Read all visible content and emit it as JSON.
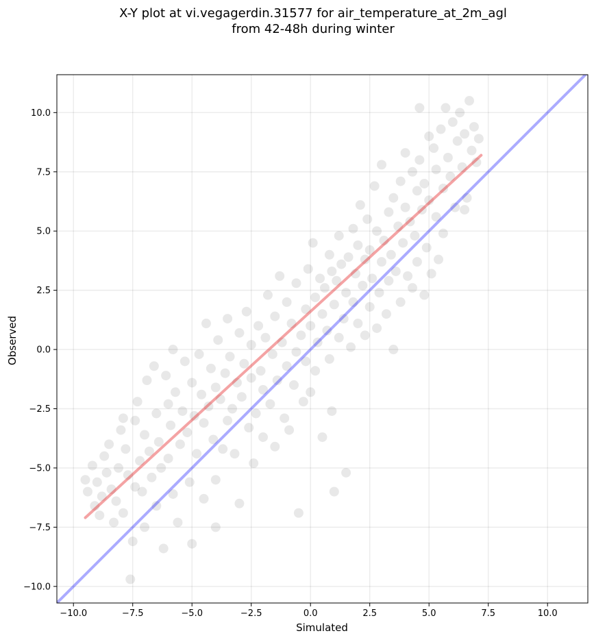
{
  "title_line1": "X-Y plot at vi.vegagerdin.31577 for air_temperature_at_2m_agl",
  "title_line2": "from 42-48h during winter",
  "chart_data": {
    "type": "scatter",
    "title": "X-Y plot at vi.vegagerdin.31577 for air_temperature_at_2m_agl from 42-48h during winter",
    "xlabel": "Simulated",
    "ylabel": "Observed",
    "xlim": [
      -10.7,
      11.7
    ],
    "ylim": [
      -10.7,
      11.6
    ],
    "xticks": [
      -10.0,
      -7.5,
      -5.0,
      -2.5,
      0.0,
      2.5,
      5.0,
      7.5,
      10.0
    ],
    "yticks": [
      -10.0,
      -7.5,
      -5.0,
      -2.5,
      0.0,
      2.5,
      5.0,
      7.5,
      10.0
    ],
    "xtick_labels": [
      "−10.0",
      "−7.5",
      "−5.0",
      "−2.5",
      "0.0",
      "2.5",
      "5.0",
      "7.5",
      "10.0"
    ],
    "ytick_labels": [
      "−10.0",
      "−7.5",
      "−5.0",
      "−2.5",
      "0.0",
      "2.5",
      "5.0",
      "7.5",
      "10.0"
    ],
    "grid": true,
    "point_color": "#000000",
    "point_alpha": 0.09,
    "lines": [
      {
        "type": "identity",
        "color": "#0000ff",
        "alpha": 0.33,
        "x": [
          -10.7,
          11.7
        ],
        "y": [
          -10.7,
          11.7
        ]
      },
      {
        "type": "fit",
        "color": "#e31a1c",
        "alpha": 0.4,
        "x": [
          -9.5,
          7.2
        ],
        "y": [
          -7.1,
          8.2
        ]
      }
    ],
    "points": [
      [
        -9.5,
        -5.5
      ],
      [
        -9.4,
        -6.0
      ],
      [
        -9.2,
        -4.9
      ],
      [
        -9.1,
        -6.6
      ],
      [
        -9.0,
        -5.6
      ],
      [
        -8.9,
        -7.0
      ],
      [
        -8.8,
        -6.2
      ],
      [
        -8.7,
        -4.5
      ],
      [
        -8.6,
        -5.2
      ],
      [
        -8.5,
        -4.0
      ],
      [
        -8.4,
        -5.9
      ],
      [
        -8.3,
        -7.3
      ],
      [
        -8.2,
        -6.4
      ],
      [
        -8.1,
        -5.0
      ],
      [
        -8.0,
        -3.4
      ],
      [
        -7.9,
        -2.9
      ],
      [
        -7.9,
        -6.9
      ],
      [
        -7.8,
        -4.2
      ],
      [
        -7.7,
        -5.3
      ],
      [
        -7.6,
        -9.7
      ],
      [
        -7.5,
        -8.1
      ],
      [
        -7.4,
        -3.0
      ],
      [
        -7.4,
        -5.8
      ],
      [
        -7.3,
        -2.2
      ],
      [
        -7.2,
        -4.7
      ],
      [
        -7.1,
        -6.0
      ],
      [
        -7.0,
        -3.6
      ],
      [
        -7.0,
        -7.5
      ],
      [
        -6.9,
        -1.3
      ],
      [
        -6.8,
        -4.3
      ],
      [
        -6.7,
        -5.4
      ],
      [
        -6.6,
        -0.7
      ],
      [
        -6.5,
        -2.7
      ],
      [
        -6.5,
        -6.6
      ],
      [
        -6.4,
        -3.9
      ],
      [
        -6.3,
        -5.0
      ],
      [
        -6.2,
        -8.4
      ],
      [
        -6.1,
        -1.1
      ],
      [
        -6.0,
        -2.3
      ],
      [
        -6.0,
        -4.6
      ],
      [
        -5.9,
        -3.2
      ],
      [
        -5.8,
        -6.1
      ],
      [
        -5.8,
        0.0
      ],
      [
        -5.7,
        -1.8
      ],
      [
        -5.6,
        -7.3
      ],
      [
        -5.5,
        -4.0
      ],
      [
        -5.4,
        -2.6
      ],
      [
        -5.3,
        -0.5
      ],
      [
        -5.2,
        -3.5
      ],
      [
        -5.1,
        -5.6
      ],
      [
        -5.0,
        -1.4
      ],
      [
        -5.0,
        -8.2
      ],
      [
        -4.9,
        -2.8
      ],
      [
        -4.8,
        -4.4
      ],
      [
        -4.7,
        -0.2
      ],
      [
        -4.6,
        -1.9
      ],
      [
        -4.5,
        -3.1
      ],
      [
        -4.5,
        -6.3
      ],
      [
        -4.4,
        1.1
      ],
      [
        -4.3,
        -2.4
      ],
      [
        -4.2,
        -0.8
      ],
      [
        -4.1,
        -3.8
      ],
      [
        -4.0,
        -5.5
      ],
      [
        -4.0,
        -1.6
      ],
      [
        -3.9,
        0.4
      ],
      [
        -3.8,
        -2.1
      ],
      [
        -3.7,
        -4.2
      ],
      [
        -3.6,
        -1.0
      ],
      [
        -3.5,
        -3.0
      ],
      [
        -3.5,
        1.3
      ],
      [
        -3.4,
        -0.3
      ],
      [
        -3.3,
        -2.5
      ],
      [
        -3.2,
        -4.4
      ],
      [
        -3.1,
        -1.4
      ],
      [
        -3.0,
        0.7
      ],
      [
        -3.0,
        -6.5
      ],
      [
        -2.9,
        -2.0
      ],
      [
        -2.8,
        -0.6
      ],
      [
        -2.7,
        1.6
      ],
      [
        -2.6,
        -3.3
      ],
      [
        -2.5,
        -1.2
      ],
      [
        -2.5,
        0.2
      ],
      [
        -2.4,
        -4.8
      ],
      [
        -2.3,
        -2.7
      ],
      [
        -2.2,
        1.0
      ],
      [
        -2.1,
        -0.9
      ],
      [
        -2.0,
        -3.7
      ],
      [
        -2.0,
        -1.7
      ],
      [
        -1.9,
        0.5
      ],
      [
        -1.8,
        2.3
      ],
      [
        -1.7,
        -2.3
      ],
      [
        -1.6,
        -0.2
      ],
      [
        -1.5,
        -4.1
      ],
      [
        -1.5,
        1.4
      ],
      [
        -1.4,
        -1.3
      ],
      [
        -1.3,
        3.1
      ],
      [
        -1.2,
        0.3
      ],
      [
        -1.1,
        -2.9
      ],
      [
        -1.0,
        -0.7
      ],
      [
        -1.0,
        2.0
      ],
      [
        -0.9,
        -3.4
      ],
      [
        -0.8,
        1.1
      ],
      [
        -0.7,
        -1.5
      ],
      [
        -0.6,
        -0.1
      ],
      [
        -0.6,
        2.8
      ],
      [
        -0.5,
        -6.9
      ],
      [
        -0.4,
        0.6
      ],
      [
        -0.3,
        -2.2
      ],
      [
        -0.2,
        1.7
      ],
      [
        -0.2,
        -0.5
      ],
      [
        -0.1,
        3.4
      ],
      [
        0.0,
        -1.8
      ],
      [
        0.0,
        1.0
      ],
      [
        0.1,
        4.5
      ],
      [
        0.2,
        2.2
      ],
      [
        0.2,
        -0.9
      ],
      [
        0.3,
        0.3
      ],
      [
        0.4,
        3.0
      ],
      [
        0.5,
        1.5
      ],
      [
        0.5,
        -3.7
      ],
      [
        0.6,
        2.6
      ],
      [
        0.7,
        0.8
      ],
      [
        0.8,
        4.0
      ],
      [
        0.8,
        -0.4
      ],
      [
        0.9,
        3.3
      ],
      [
        1.0,
        1.9
      ],
      [
        1.0,
        -6.0
      ],
      [
        1.1,
        2.9
      ],
      [
        1.2,
        0.5
      ],
      [
        1.2,
        4.8
      ],
      [
        1.3,
        3.6
      ],
      [
        1.4,
        1.3
      ],
      [
        1.5,
        2.4
      ],
      [
        1.5,
        -5.2
      ],
      [
        1.6,
        3.9
      ],
      [
        1.7,
        0.1
      ],
      [
        1.8,
        5.1
      ],
      [
        1.8,
        2.0
      ],
      [
        1.9,
        3.2
      ],
      [
        2.0,
        4.4
      ],
      [
        2.0,
        1.1
      ],
      [
        2.1,
        6.1
      ],
      [
        2.2,
        2.7
      ],
      [
        2.3,
        0.6
      ],
      [
        2.3,
        3.8
      ],
      [
        2.4,
        5.5
      ],
      [
        2.5,
        1.8
      ],
      [
        2.5,
        4.2
      ],
      [
        2.6,
        3.0
      ],
      [
        2.7,
        6.9
      ],
      [
        2.8,
        0.9
      ],
      [
        2.8,
        5.0
      ],
      [
        2.9,
        2.4
      ],
      [
        3.0,
        3.7
      ],
      [
        3.0,
        7.8
      ],
      [
        3.1,
        4.6
      ],
      [
        3.2,
        1.5
      ],
      [
        3.3,
        5.8
      ],
      [
        3.3,
        2.9
      ],
      [
        3.4,
        4.0
      ],
      [
        3.5,
        6.4
      ],
      [
        3.5,
        0.0
      ],
      [
        3.6,
        3.3
      ],
      [
        3.7,
        5.2
      ],
      [
        3.8,
        7.1
      ],
      [
        3.8,
        2.0
      ],
      [
        3.9,
        4.5
      ],
      [
        4.0,
        6.0
      ],
      [
        4.0,
        8.3
      ],
      [
        4.1,
        3.1
      ],
      [
        4.2,
        5.4
      ],
      [
        4.3,
        7.5
      ],
      [
        4.3,
        2.6
      ],
      [
        4.4,
        4.8
      ],
      [
        4.5,
        6.7
      ],
      [
        4.5,
        3.7
      ],
      [
        4.6,
        8.0
      ],
      [
        4.7,
        5.9
      ],
      [
        4.8,
        2.3
      ],
      [
        4.8,
        7.0
      ],
      [
        4.9,
        4.3
      ],
      [
        5.0,
        9.0
      ],
      [
        5.0,
        6.3
      ],
      [
        5.1,
        3.2
      ],
      [
        5.2,
        8.5
      ],
      [
        5.3,
        5.6
      ],
      [
        5.3,
        7.6
      ],
      [
        5.4,
        3.8
      ],
      [
        5.5,
        9.3
      ],
      [
        5.6,
        6.8
      ],
      [
        5.6,
        4.9
      ],
      [
        5.8,
        8.1
      ],
      [
        5.9,
        7.3
      ],
      [
        6.0,
        9.6
      ],
      [
        6.1,
        6.0
      ],
      [
        6.2,
        8.8
      ],
      [
        6.3,
        10.0
      ],
      [
        6.4,
        7.7
      ],
      [
        6.5,
        9.1
      ],
      [
        6.6,
        6.4
      ],
      [
        6.7,
        10.5
      ],
      [
        6.8,
        8.4
      ],
      [
        6.9,
        9.4
      ],
      [
        7.0,
        7.9
      ],
      [
        7.1,
        8.9
      ],
      [
        6.5,
        5.9
      ],
      [
        5.7,
        10.2
      ],
      [
        4.6,
        10.2
      ],
      [
        -4.0,
        -7.5
      ],
      [
        0.9,
        -2.6
      ]
    ]
  }
}
